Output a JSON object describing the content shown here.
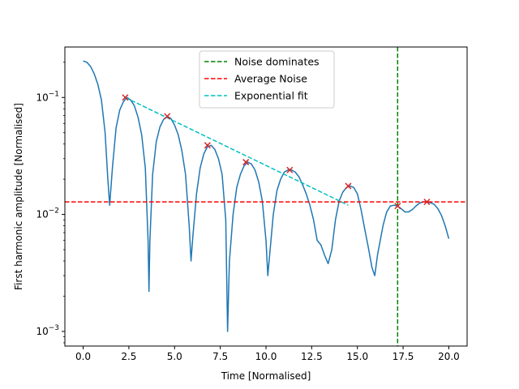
{
  "chart_data": {
    "type": "line",
    "xlabel": "Time [Normalised]",
    "ylabel": "First harmonic amplitude [Normalised]",
    "xlim": [
      -1.0,
      21.0
    ],
    "ylim": [
      0.00075,
      0.27
    ],
    "yscale": "log",
    "x_ticks": [
      0.0,
      2.5,
      5.0,
      7.5,
      10.0,
      12.5,
      15.0,
      17.5,
      20.0
    ],
    "x_tick_labels": [
      "0.0",
      "2.5",
      "5.0",
      "7.5",
      "10.0",
      "12.5",
      "15.0",
      "17.5",
      "20.0"
    ],
    "y_ticks": [
      {
        "value": 0.001,
        "base": "10",
        "exp": "−3"
      },
      {
        "value": 0.01,
        "base": "10",
        "exp": "−2"
      },
      {
        "value": 0.1,
        "base": "10",
        "exp": "−1"
      }
    ],
    "grid": false,
    "legend_position": "upper-center",
    "legend": [
      {
        "label": "Noise dominates",
        "color": "#008000",
        "style": "dashed"
      },
      {
        "label": "Average Noise",
        "color": "#ff0000",
        "style": "dashed"
      },
      {
        "label": "Exponential fit",
        "color": "#00bfbf",
        "style": "dashed"
      }
    ],
    "signal": {
      "color": "#1f77b4",
      "x": [
        0.0,
        0.2,
        0.4,
        0.6,
        0.8,
        1.0,
        1.2,
        1.35,
        1.45,
        1.6,
        1.8,
        2.0,
        2.2,
        2.4,
        2.6,
        2.8,
        3.0,
        3.2,
        3.4,
        3.55,
        3.6,
        3.65,
        3.8,
        4.0,
        4.2,
        4.4,
        4.6,
        4.8,
        5.0,
        5.2,
        5.4,
        5.6,
        5.8,
        5.9,
        6.0,
        6.2,
        6.4,
        6.6,
        6.8,
        7.0,
        7.2,
        7.4,
        7.6,
        7.8,
        7.9,
        8.0,
        8.2,
        8.4,
        8.6,
        8.8,
        9.0,
        9.2,
        9.4,
        9.6,
        9.8,
        10.0,
        10.1,
        10.2,
        10.4,
        10.6,
        10.8,
        11.0,
        11.2,
        11.4,
        11.6,
        11.8,
        12.0,
        12.2,
        12.4,
        12.6,
        12.8,
        13.0,
        13.2,
        13.4,
        13.6,
        13.8,
        14.0,
        14.2,
        14.4,
        14.6,
        14.8,
        15.0,
        15.2,
        15.4,
        15.6,
        15.8,
        15.95,
        16.1,
        16.4,
        16.6,
        16.8,
        17.0,
        17.2,
        17.4,
        17.6,
        17.8,
        18.0,
        18.2,
        18.4,
        18.6,
        18.8,
        19.0,
        19.2,
        19.4,
        19.6,
        19.8,
        20.0
      ],
      "y": [
        0.205,
        0.2,
        0.185,
        0.16,
        0.13,
        0.095,
        0.05,
        0.02,
        0.012,
        0.025,
        0.055,
        0.078,
        0.092,
        0.1,
        0.095,
        0.085,
        0.068,
        0.048,
        0.025,
        0.006,
        0.0022,
        0.006,
        0.022,
        0.042,
        0.056,
        0.065,
        0.069,
        0.066,
        0.058,
        0.048,
        0.035,
        0.022,
        0.008,
        0.004,
        0.0065,
        0.015,
        0.025,
        0.033,
        0.038,
        0.039,
        0.036,
        0.03,
        0.022,
        0.009,
        0.001,
        0.004,
        0.01,
        0.017,
        0.022,
        0.026,
        0.028,
        0.027,
        0.024,
        0.019,
        0.013,
        0.006,
        0.003,
        0.0045,
        0.01,
        0.016,
        0.02,
        0.023,
        0.024,
        0.024,
        0.023,
        0.021,
        0.018,
        0.015,
        0.012,
        0.009,
        0.006,
        0.0055,
        0.0045,
        0.0038,
        0.005,
        0.009,
        0.013,
        0.0155,
        0.017,
        0.0175,
        0.017,
        0.015,
        0.011,
        0.0075,
        0.0052,
        0.0035,
        0.003,
        0.0045,
        0.008,
        0.0105,
        0.0118,
        0.012,
        0.0118,
        0.0112,
        0.0105,
        0.0105,
        0.011,
        0.0118,
        0.0125,
        0.0128,
        0.0128,
        0.0126,
        0.0122,
        0.0112,
        0.0098,
        0.008,
        0.0062
      ]
    },
    "peaks": {
      "color": "#d62728",
      "marker": "x",
      "x": [
        2.3,
        4.6,
        6.8,
        8.9,
        11.3,
        14.5,
        17.2,
        18.8
      ],
      "y": [
        0.1,
        0.069,
        0.039,
        0.028,
        0.024,
        0.0175,
        0.0118,
        0.0128
      ]
    },
    "noise_dominates_x": 17.2,
    "average_noise_y": 0.0128,
    "exponential_fit": {
      "x": [
        2.3,
        14.5
      ],
      "y": [
        0.1,
        0.012
      ]
    }
  }
}
